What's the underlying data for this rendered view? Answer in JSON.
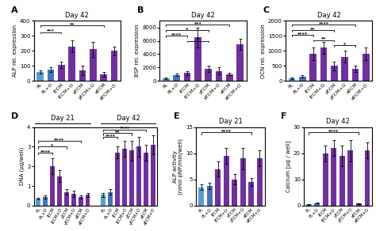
{
  "chart_data": [
    {
      "type": "bar",
      "label": "A",
      "title": "Day 42",
      "ylabel": "ALP rel. expression",
      "categories": [
        "PL",
        "PL+O",
        "iECM",
        "iECM+O",
        "yECM",
        "yECM+O",
        "aECM",
        "aECM+O"
      ],
      "values": [
        60,
        75,
        105,
        230,
        70,
        210,
        45,
        200
      ],
      "errors": [
        10,
        15,
        20,
        40,
        30,
        50,
        15,
        30
      ],
      "colors": [
        "#5b9bd5",
        "#4472c4",
        "#7030a0",
        "#7030a0",
        "#7030a0",
        "#7030a0",
        "#7030a0",
        "#7030a0"
      ],
      "ylim": [
        0,
        400
      ],
      "yticks": [
        0,
        100,
        200,
        300,
        400
      ],
      "annotations": [
        {
          "x1": 0,
          "x2": 6,
          "y": 370,
          "text": "**"
        },
        {
          "x1": 0,
          "x2": 2,
          "y": 325,
          "text": "***"
        }
      ]
    },
    {
      "type": "bar",
      "label": "B",
      "title": "Day 42",
      "ylabel": "BSP rel. expression",
      "categories": [
        "PL",
        "PL+O",
        "iECM",
        "iECM+O",
        "yECM",
        "yECM+O",
        "aECM",
        "aECM+O"
      ],
      "values": [
        400,
        900,
        1200,
        6500,
        1800,
        1500,
        1000,
        5500
      ],
      "errors": [
        100,
        200,
        300,
        1500,
        500,
        500,
        200,
        800
      ],
      "colors": [
        "#5b9bd5",
        "#4472c4",
        "#7030a0",
        "#7030a0",
        "#7030a0",
        "#7030a0",
        "#7030a0",
        "#7030a0"
      ],
      "ylim": [
        0,
        9000
      ],
      "yticks": [
        0,
        2000,
        4000,
        6000,
        8000
      ],
      "annotations": [
        {
          "x1": 0,
          "x2": 6,
          "y": 8400,
          "text": "***"
        },
        {
          "x1": 0,
          "x2": 4,
          "y": 7600,
          "text": "*"
        },
        {
          "x1": 0,
          "x2": 2,
          "y": 6800,
          "text": "****"
        },
        {
          "x1": 2,
          "x2": 4,
          "y": 6000,
          "text": "*"
        }
      ]
    },
    {
      "type": "bar",
      "label": "C",
      "title": "Day 42",
      "ylabel": "OCN rel. expression",
      "categories": [
        "PL",
        "PL+O",
        "iECM",
        "iECM+O",
        "yECM",
        "yECM+O",
        "aECM",
        "aECM+O"
      ],
      "values": [
        80,
        150,
        900,
        1100,
        500,
        800,
        400,
        900
      ],
      "errors": [
        20,
        50,
        200,
        200,
        150,
        200,
        100,
        200
      ],
      "colors": [
        "#5b9bd5",
        "#4472c4",
        "#7030a0",
        "#7030a0",
        "#7030a0",
        "#7030a0",
        "#7030a0",
        "#7030a0"
      ],
      "ylim": [
        0,
        2000
      ],
      "yticks": [
        0,
        500,
        1000,
        1500,
        2000
      ],
      "annotations": [
        {
          "x1": 0,
          "x2": 6,
          "y": 1870,
          "text": "****"
        },
        {
          "x1": 0,
          "x2": 4,
          "y": 1700,
          "text": "**"
        },
        {
          "x1": 0,
          "x2": 2,
          "y": 1530,
          "text": "****"
        },
        {
          "x1": 2,
          "x2": 4,
          "y": 1360,
          "text": "**"
        },
        {
          "x1": 4,
          "x2": 6,
          "y": 1190,
          "text": "*"
        }
      ]
    },
    {
      "type": "bar",
      "label": "D",
      "ylabel": "DNA (μg/well)",
      "ylim": [
        0,
        4
      ],
      "yticks": [
        0,
        1,
        2,
        3,
        4
      ],
      "groups": [
        {
          "title": "Day 21",
          "categories": [
            "PL",
            "PL+O",
            "iECM",
            "iECM+O",
            "yECM",
            "yECM+O",
            "aECM",
            "aECM+O"
          ],
          "values": [
            0.35,
            0.45,
            2.0,
            1.5,
            0.7,
            0.6,
            0.45,
            0.55
          ],
          "errors": [
            0.05,
            0.08,
            0.4,
            0.3,
            0.15,
            0.15,
            0.08,
            0.1
          ],
          "colors": [
            "#5b9bd5",
            "#4472c4",
            "#7030a0",
            "#7030a0",
            "#7030a0",
            "#7030a0",
            "#7030a0",
            "#7030a0"
          ],
          "annotations": [
            {
              "x1": 0,
              "x2": 2,
              "y": 2.7,
              "text": "****"
            },
            {
              "x1": 0,
              "x2": 4,
              "y": 3.0,
              "text": "*"
            },
            {
              "x1": 0,
              "x2": 6,
              "y": 3.3,
              "text": "****"
            }
          ]
        },
        {
          "title": "Day 42",
          "categories": [
            "PL",
            "PL+O",
            "iECM",
            "iECM+O",
            "yECM",
            "yECM+O",
            "aECM",
            "aECM+O"
          ],
          "values": [
            0.55,
            0.7,
            2.7,
            2.9,
            2.8,
            3.0,
            2.7,
            3.1
          ],
          "errors": [
            0.1,
            0.15,
            0.3,
            0.4,
            0.5,
            0.5,
            0.4,
            0.5
          ],
          "colors": [
            "#5b9bd5",
            "#4472c4",
            "#7030a0",
            "#7030a0",
            "#7030a0",
            "#7030a0",
            "#7030a0",
            "#7030a0"
          ],
          "annotations": [
            {
              "x1": 0,
              "x2": 2,
              "y": 3.5,
              "text": "****"
            },
            {
              "x1": 0,
              "x2": 4,
              "y": 3.7,
              "text": "**"
            },
            {
              "x1": 0,
              "x2": 6,
              "y": 3.88,
              "text": "****"
            }
          ]
        }
      ]
    },
    {
      "type": "bar",
      "label": "E",
      "title": "Day 21",
      "ylabel": "ALP activity\n(nmol pNP/min/well)",
      "categories": [
        "PL",
        "PL+O",
        "iECM",
        "iECM+O",
        "yECM",
        "yECM+O",
        "aECM",
        "aECM+O"
      ],
      "values": [
        3.5,
        3.8,
        7.0,
        9.5,
        5.0,
        9.0,
        4.5,
        9.0
      ],
      "errors": [
        0.5,
        0.6,
        1.5,
        1.5,
        1.0,
        2.0,
        0.8,
        1.5
      ],
      "colors": [
        "#5b9bd5",
        "#4472c4",
        "#7030a0",
        "#7030a0",
        "#7030a0",
        "#7030a0",
        "#7030a0",
        "#7030a0"
      ],
      "ylim": [
        0,
        15
      ],
      "yticks": [
        0,
        5,
        10,
        15
      ],
      "annotations": [
        {
          "x1": 0,
          "x2": 6,
          "y": 14.0,
          "text": "****"
        }
      ]
    },
    {
      "type": "bar",
      "label": "F",
      "title": "Day 42",
      "ylabel": "Calcium [μg / well]",
      "categories": [
        "PL",
        "PL+O",
        "iECM",
        "iECM+O",
        "yECM",
        "yECM+O",
        "aECM",
        "aECM+O"
      ],
      "values": [
        0.5,
        1.0,
        20,
        22,
        19,
        21,
        0.8,
        21
      ],
      "errors": [
        0.1,
        0.2,
        3,
        3,
        4,
        4,
        0.2,
        3
      ],
      "colors": [
        "#5b9bd5",
        "#4472c4",
        "#7030a0",
        "#7030a0",
        "#7030a0",
        "#7030a0",
        "#7030a0",
        "#7030a0"
      ],
      "ylim": [
        0,
        30
      ],
      "yticks": [
        0,
        10,
        20,
        30
      ],
      "annotations": [
        {
          "x1": 0,
          "x2": 6,
          "y": 28.0,
          "text": "****"
        }
      ]
    }
  ]
}
